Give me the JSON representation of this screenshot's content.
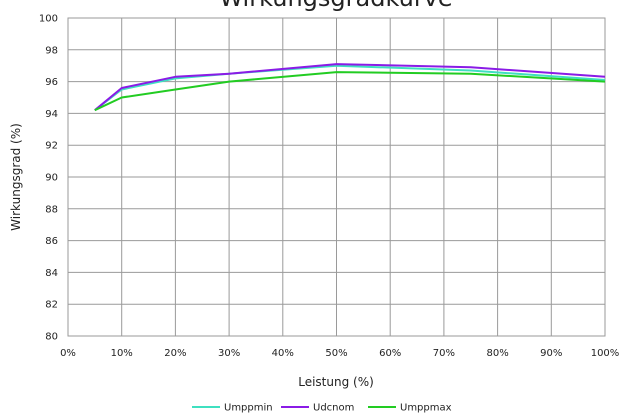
{
  "chart_data": {
    "type": "line",
    "title": "Wirkungsgradkurve",
    "xlabel": "Leistung (%)",
    "ylabel": "Wirkungsgrad (%)",
    "xlim": [
      0,
      100
    ],
    "ylim": [
      80,
      100
    ],
    "x_ticks": [
      "0%",
      "10%",
      "20%",
      "30%",
      "40%",
      "50%",
      "60%",
      "70%",
      "80%",
      "90%",
      "100%"
    ],
    "y_ticks": [
      "80",
      "82",
      "84",
      "86",
      "88",
      "90",
      "92",
      "94",
      "96",
      "98",
      "100"
    ],
    "grid": true,
    "legend_position": "bottom",
    "x": [
      5,
      10,
      20,
      30,
      50,
      75,
      100
    ],
    "series": [
      {
        "name": "Umppmin",
        "color": "#3fe0c0",
        "values": [
          94.2,
          95.5,
          96.2,
          96.5,
          97.0,
          96.7,
          96.1
        ]
      },
      {
        "name": "Udcnom",
        "color": "#8a1be6",
        "values": [
          94.2,
          95.6,
          96.3,
          96.5,
          97.1,
          96.9,
          96.3
        ]
      },
      {
        "name": "Umppmax",
        "color": "#22cc22",
        "values": [
          94.2,
          95.0,
          95.5,
          96.0,
          96.6,
          96.5,
          96.0
        ]
      }
    ]
  }
}
